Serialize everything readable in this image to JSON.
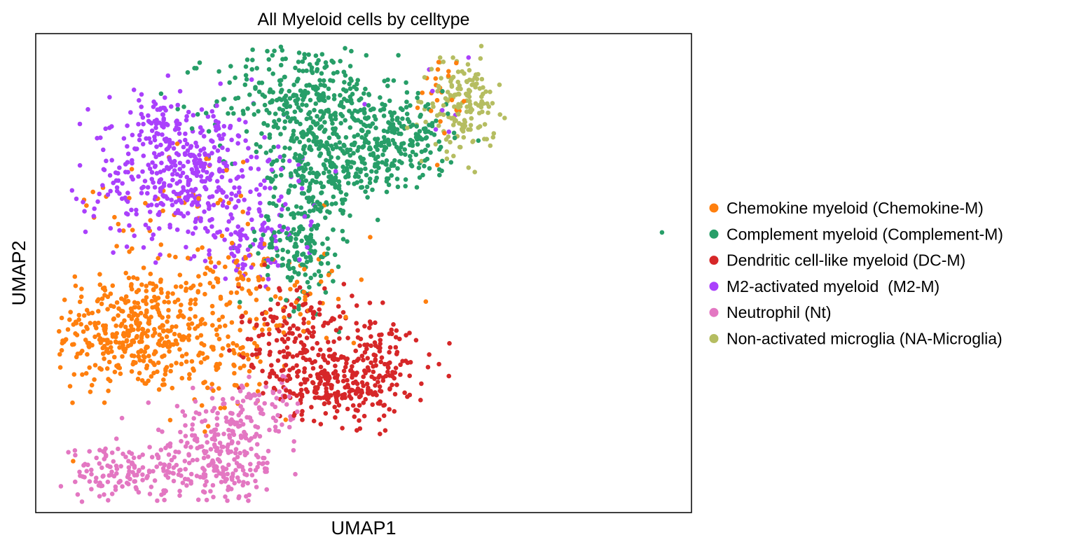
{
  "chart_data": {
    "type": "scatter",
    "title": "All Myeloid cells by celltype",
    "xlabel": "UMAP1",
    "ylabel": "UMAP2",
    "xlim": [
      0,
      100
    ],
    "ylim": [
      0,
      100
    ],
    "grid": false,
    "ticks": false,
    "legend": {
      "placement": "outside-right"
    },
    "series": [
      {
        "name": "Chemokine myeloid (Chemokine-M)",
        "color": "#ff7f0e",
        "clusters": [
          {
            "cx": 15,
            "cy": 38,
            "sx": 6.0,
            "sy": 6.5,
            "n": 420
          },
          {
            "cx": 30,
            "cy": 32,
            "sx": 4.5,
            "sy": 6.0,
            "n": 90
          },
          {
            "cx": 32,
            "cy": 50,
            "sx": 4.0,
            "sy": 3.0,
            "n": 60
          },
          {
            "cx": 20,
            "cy": 65,
            "sx": 8.0,
            "sy": 6.0,
            "n": 45
          },
          {
            "cx": 62,
            "cy": 88,
            "sx": 1.5,
            "sy": 4.0,
            "n": 22
          },
          {
            "cx": 42,
            "cy": 45,
            "sx": 6.0,
            "sy": 5.0,
            "n": 30
          }
        ],
        "points": [
          [
            51,
            57.5
          ]
        ]
      },
      {
        "name": "Complement myeloid (Complement-M)",
        "color": "#279e68",
        "clusters": [
          {
            "cx": 41,
            "cy": 86,
            "sx": 7.0,
            "sy": 6.0,
            "n": 330
          },
          {
            "cx": 51,
            "cy": 76,
            "sx": 6.5,
            "sy": 5.0,
            "n": 180
          },
          {
            "cx": 43,
            "cy": 70,
            "sx": 4.0,
            "sy": 7.0,
            "n": 200
          },
          {
            "cx": 40,
            "cy": 55,
            "sx": 3.0,
            "sy": 6.0,
            "n": 140
          },
          {
            "cx": 56,
            "cy": 78,
            "sx": 4.0,
            "sy": 4.0,
            "n": 110
          }
        ],
        "points": [
          [
            95.5,
            58.5
          ]
        ]
      },
      {
        "name": "Dendritic cell-like myeloid (DC-M)",
        "color": "#d62728",
        "clusters": [
          {
            "cx": 46,
            "cy": 27,
            "sx": 5.0,
            "sy": 4.0,
            "n": 260
          },
          {
            "cx": 40,
            "cy": 38,
            "sx": 4.5,
            "sy": 5.0,
            "n": 160
          },
          {
            "cx": 52,
            "cy": 33,
            "sx": 4.0,
            "sy": 4.0,
            "n": 60
          }
        ],
        "points": [
          [
            58,
            36
          ],
          [
            60,
            33
          ],
          [
            61.5,
            31
          ],
          [
            63,
            28.5
          ],
          [
            57,
            37.5
          ],
          [
            55,
            38
          ]
        ]
      },
      {
        "name": "M2-activated myeloid  (M2-M)",
        "color": "#aa40fc",
        "clusters": [
          {
            "cx": 23,
            "cy": 70,
            "sx": 7.5,
            "sy": 7.0,
            "n": 430
          },
          {
            "cx": 33,
            "cy": 57,
            "sx": 4.0,
            "sy": 4.0,
            "n": 80
          },
          {
            "cx": 19,
            "cy": 81,
            "sx": 4.0,
            "sy": 4.0,
            "n": 60
          }
        ],
        "points": [
          [
            60,
            92.5
          ],
          [
            64,
            83
          ],
          [
            62,
            84
          ],
          [
            61,
            80
          ],
          [
            66,
            95
          ],
          [
            63,
            79.5
          ],
          [
            60.5,
            88
          ]
        ]
      },
      {
        "name": "Neutrophil (Nt)",
        "color": "#e377c2",
        "clusters": [
          {
            "cx": 31,
            "cy": 12,
            "sx": 3.5,
            "sy": 5.5,
            "n": 150
          },
          {
            "cx": 21,
            "cy": 8,
            "sx": 5.0,
            "sy": 3.0,
            "n": 120
          },
          {
            "cx": 11,
            "cy": 8,
            "sx": 3.5,
            "sy": 2.5,
            "n": 80
          },
          {
            "cx": 34,
            "cy": 22,
            "sx": 4.0,
            "sy": 3.5,
            "n": 60
          },
          {
            "cx": 25,
            "cy": 16,
            "sx": 4.0,
            "sy": 3.0,
            "n": 50
          }
        ],
        "points": []
      },
      {
        "name": "Non-activated microglia (NA-Microglia)",
        "color": "#b5bd61",
        "clusters": [
          {
            "cx": 65,
            "cy": 85,
            "sx": 2.5,
            "sy": 5.0,
            "n": 160
          }
        ],
        "points": []
      }
    ]
  }
}
